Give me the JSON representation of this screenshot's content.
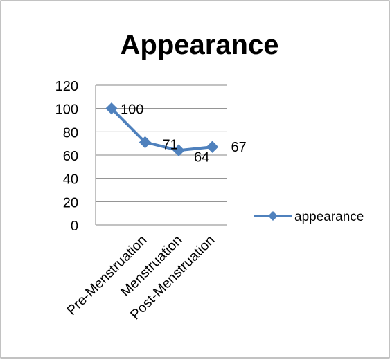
{
  "chart_data": {
    "type": "line",
    "title": "Appearance",
    "categories": [
      "Pre-Menstruation",
      "Menstruation",
      "Post-Menstruation"
    ],
    "x": [
      0,
      1,
      2,
      3
    ],
    "series": [
      {
        "name": "appearance",
        "values": [
          100,
          71,
          64,
          67
        ],
        "labels": [
          "100",
          "71",
          "64",
          "67"
        ]
      }
    ],
    "y_ticks": [
      "0",
      "20",
      "40",
      "60",
      "80",
      "100",
      "120"
    ],
    "ylim": [
      0,
      120
    ],
    "xlabel": "",
    "ylabel": "",
    "grid": true,
    "legend": "right",
    "colors": {
      "series": "#4f81bd",
      "grid": "#868686",
      "border": "#868686",
      "text": "#000000"
    }
  }
}
